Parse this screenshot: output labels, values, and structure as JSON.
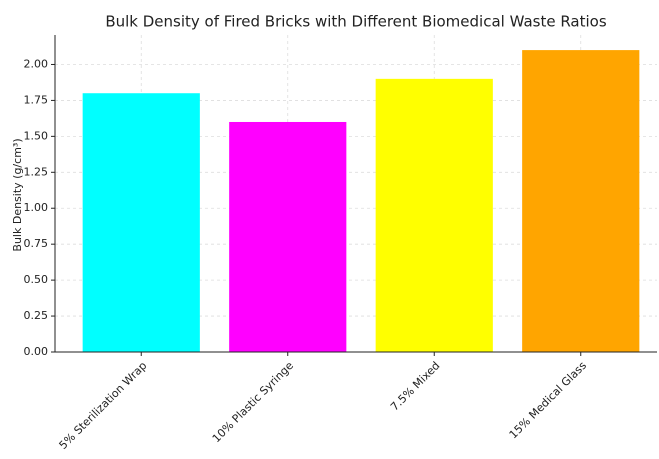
{
  "chart_data": {
    "type": "bar",
    "title": "Bulk Density of Fired Bricks with Different Biomedical Waste Ratios",
    "ylabel": "Bulk Density (g/cm³)",
    "categories": [
      "5% Sterilization Wrap",
      "10% Plastic Syringe",
      "7.5% Mixed",
      "15% Medical Glass"
    ],
    "values": [
      1.8,
      1.6,
      1.9,
      2.1
    ],
    "colors": [
      "#00ffff",
      "#ff00ff",
      "#ffff00",
      "#ffa500"
    ],
    "ylim": [
      0,
      2.205
    ],
    "yticks": [
      {
        "value": 0,
        "label": "0.00"
      },
      {
        "value": 0.25,
        "label": "0.25"
      },
      {
        "value": 0.5,
        "label": "0.50"
      },
      {
        "value": 0.75,
        "label": "0.75"
      },
      {
        "value": 1,
        "label": "1.00"
      },
      {
        "value": 1.25,
        "label": "1.25"
      },
      {
        "value": 1.5,
        "label": "1.50"
      },
      {
        "value": 1.75,
        "label": "1.75"
      },
      {
        "value": 2,
        "label": "2.00"
      }
    ],
    "grid": true
  }
}
